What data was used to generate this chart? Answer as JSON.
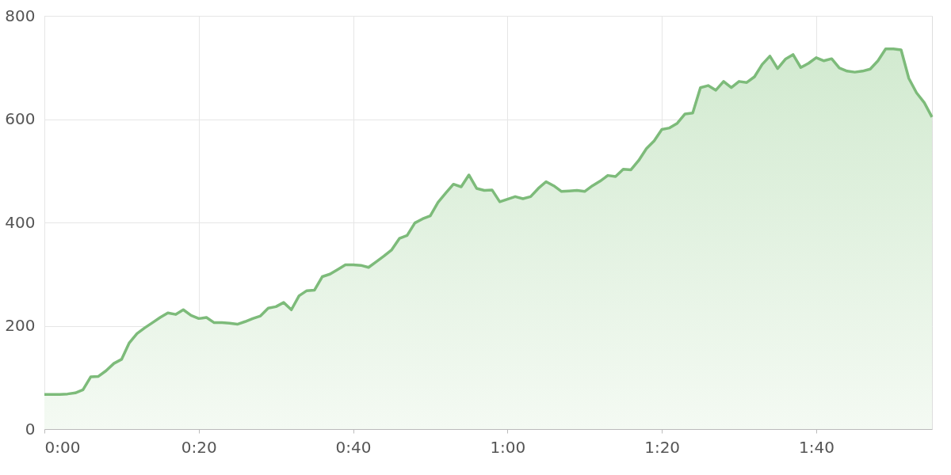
{
  "chart_data": {
    "type": "area",
    "x": [
      0,
      1,
      2,
      3,
      4,
      5,
      6,
      7,
      8,
      9,
      10,
      11,
      12,
      13,
      14,
      15,
      16,
      17,
      18,
      19,
      20,
      21,
      22,
      23,
      24,
      25,
      26,
      27,
      28,
      29,
      30,
      31,
      32,
      33,
      34,
      35,
      36,
      37,
      38,
      39,
      40,
      41,
      42,
      43,
      44,
      45,
      46,
      47,
      48,
      49,
      50,
      51,
      52,
      53,
      54,
      55,
      56,
      57,
      58,
      59,
      60,
      61,
      62,
      63,
      64,
      65,
      66,
      67,
      68,
      69,
      70,
      71,
      72,
      73,
      74,
      75,
      76,
      77,
      78,
      79,
      80,
      81,
      82,
      83,
      84,
      85,
      86,
      87,
      88,
      89,
      90,
      91,
      92,
      93,
      94,
      95,
      96,
      97,
      98,
      99,
      100,
      101,
      102,
      103,
      104,
      105,
      106,
      107,
      108,
      109,
      110,
      111,
      112,
      113,
      114,
      115
    ],
    "series": [
      {
        "color": "#7dbb7a",
        "values": [
          67,
          67,
          67,
          68,
          70,
          76,
          101,
          102,
          113,
          127,
          135,
          167,
          185,
          196,
          206,
          216,
          225,
          222,
          231,
          220,
          214,
          216,
          206,
          206,
          205,
          203,
          208,
          214,
          219,
          234,
          237,
          245,
          231,
          258,
          268,
          269,
          295,
          300,
          309,
          318,
          318,
          317,
          313,
          324,
          335,
          347,
          369,
          375,
          399,
          407,
          413,
          439,
          457,
          474,
          469,
          492,
          466,
          462,
          463,
          440,
          445,
          450,
          446,
          450,
          466,
          479,
          471,
          460,
          461,
          462,
          460,
          471,
          480,
          491,
          489,
          503,
          502,
          520,
          543,
          558,
          580,
          583,
          592,
          610,
          612,
          661,
          665,
          656,
          673,
          661,
          673,
          671,
          682,
          706,
          722,
          698,
          716,
          725,
          700,
          708,
          719,
          713,
          717,
          699,
          693,
          691,
          693,
          697,
          713,
          736,
          736,
          734,
          679,
          651,
          632,
          604
        ]
      }
    ],
    "xlim": [
      0,
      115
    ],
    "xticks": [
      {
        "value": 0,
        "label": "0:00"
      },
      {
        "value": 20,
        "label": "0:20"
      },
      {
        "value": 40,
        "label": "0:40"
      },
      {
        "value": 60,
        "label": "1:00"
      },
      {
        "value": 80,
        "label": "1:20"
      },
      {
        "value": 100,
        "label": "1:40"
      }
    ],
    "ylim": [
      0,
      800
    ],
    "yticks": [
      0,
      200,
      400,
      600,
      800
    ],
    "grid": true
  }
}
